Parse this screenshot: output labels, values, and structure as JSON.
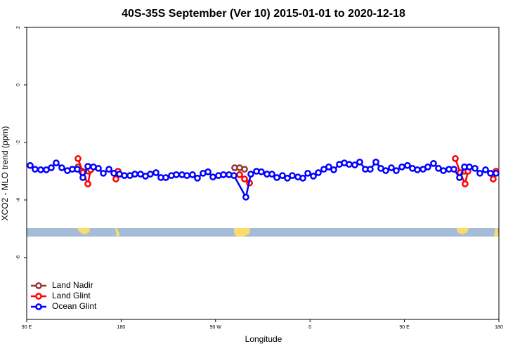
{
  "chart_data": {
    "type": "line",
    "title": "40S-35S September (Ver 10)   2015-01-01 to 2020-12-18",
    "x_label": "Longitude",
    "y_label": "XCO2 - MLO trend (ppm)",
    "xlim": [
      90,
      540
    ],
    "xticks": [
      {
        "value": 90,
        "label": "90 E"
      },
      {
        "value": 180,
        "label": "180"
      },
      {
        "value": 270,
        "label": "90 W"
      },
      {
        "value": 360,
        "label": "0"
      },
      {
        "value": 450,
        "label": "90 E"
      },
      {
        "value": 540,
        "label": "180"
      }
    ],
    "ylim": [
      -8.15,
      2
    ],
    "yticks": [
      2,
      0,
      -2,
      -4,
      -6
    ],
    "legend": "bottom-left",
    "series": [
      {
        "name": "Land Nadir",
        "color": "#993333",
        "x": [
          138.9,
          149.0,
          null,
          288.2,
          292.9,
          297.6,
          null,
          507.1
        ],
        "values": [
          -2.85,
          -3.0,
          null,
          -2.88,
          -2.88,
          -2.93,
          null,
          -3.0
        ]
      },
      {
        "name": "Land Glint",
        "color": "#ff0000",
        "x": [
          138.9,
          143.6,
          148.3,
          151.0,
          null,
          175.0,
          177.0,
          null,
          292.9,
          297.6,
          302.3,
          null,
          498.5,
          503.1,
          507.8,
          510.5,
          null,
          534.6,
          537.3
        ],
        "values": [
          -2.56,
          -3.05,
          -3.44,
          -2.95,
          null,
          -3.27,
          -3.0,
          null,
          -3.12,
          -3.27,
          -3.41,
          null,
          -2.56,
          -3.05,
          -3.44,
          -3.0,
          null,
          -3.27,
          -3.0
        ]
      },
      {
        "name": "Ocean Glint",
        "color": "#0000ff",
        "x": [
          93.3,
          98.0,
          103.4,
          108.7,
          113.4,
          118.1,
          123.5,
          128.8,
          133.5,
          138.2,
          143.6,
          148.3,
          153.6,
          158.3,
          163.0,
          168.4,
          173.1,
          178.4,
          183.1,
          188.4,
          193.1,
          198.5,
          203.2,
          207.8,
          213.2,
          217.9,
          222.6,
          227.9,
          232.6,
          238.0,
          242.7,
          248.0,
          252.7,
          258.1,
          262.8,
          267.5,
          272.8,
          277.5,
          282.8,
          287.5,
          298.9,
          303.6,
          309.0,
          313.6,
          319.0,
          323.7,
          328.4,
          333.7,
          338.4,
          343.1,
          348.5,
          353.2,
          357.9,
          363.2,
          367.9,
          373.2,
          377.9,
          382.6,
          388.0,
          392.7,
          397.3,
          402.7,
          407.4,
          412.7,
          417.4,
          422.8,
          427.5,
          432.2,
          437.5,
          442.2,
          447.6,
          452.9,
          457.6,
          462.3,
          467.7,
          472.3,
          477.7,
          482.4,
          487.1,
          492.4,
          497.1,
          502.5,
          507.2,
          511.9,
          517.2,
          521.9,
          527.3,
          532.0,
          537.3
        ],
        "values": [
          -2.8,
          -2.93,
          -2.95,
          -2.95,
          -2.88,
          -2.71,
          -2.88,
          -2.98,
          -2.93,
          -2.93,
          -3.22,
          -2.83,
          -2.85,
          -2.9,
          -3.07,
          -2.93,
          -3.07,
          -3.1,
          -3.15,
          -3.15,
          -3.1,
          -3.1,
          -3.17,
          -3.1,
          -3.05,
          -3.22,
          -3.22,
          -3.15,
          -3.12,
          -3.12,
          -3.15,
          -3.12,
          -3.24,
          -3.07,
          -3.02,
          -3.2,
          -3.15,
          -3.12,
          -3.12,
          -3.15,
          -3.9,
          -3.1,
          -3.0,
          -3.02,
          -3.1,
          -3.1,
          -3.22,
          -3.15,
          -3.24,
          -3.15,
          -3.2,
          -3.24,
          -3.07,
          -3.17,
          -3.05,
          -2.93,
          -2.85,
          -2.95,
          -2.76,
          -2.71,
          -2.76,
          -2.78,
          -2.68,
          -2.93,
          -2.93,
          -2.68,
          -2.9,
          -2.98,
          -2.88,
          -2.98,
          -2.85,
          -2.8,
          -2.9,
          -2.95,
          -2.93,
          -2.85,
          -2.73,
          -2.9,
          -2.98,
          -2.93,
          -2.93,
          -3.22,
          -2.85,
          -2.85,
          -2.9,
          -3.07,
          -2.95,
          -3.07,
          -3.07
        ]
      }
    ]
  }
}
